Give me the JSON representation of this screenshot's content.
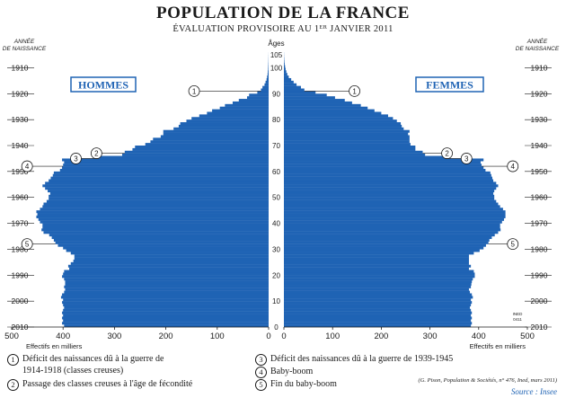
{
  "title": "POPULATION DE LA FRANCE",
  "subtitle": "ÉVALUATION PROVISOIRE AU 1ᴱᴿ JANVIER 2011",
  "colors": {
    "bar": "#1f63b4",
    "label_box": "#1f63b4",
    "text": "#1a1a1a",
    "source": "#1f63b4"
  },
  "legend": [
    {
      "n": "1",
      "text": "Déficit des naissances dû à la guerre de"
    },
    {
      "n": "",
      "text": "1914-1918 (classes creuses)"
    },
    {
      "n": "2",
      "text": "Passage des classes creuses à l'âge de fécondité"
    },
    {
      "n": "3",
      "text": "Déficit des naissances dû à la guerre de 1939-1945"
    },
    {
      "n": "4",
      "text": "Baby-boom"
    },
    {
      "n": "5",
      "text": "Fin du baby-boom"
    }
  ],
  "credit": "(G. Pison, Population & Sociétés, n° 476, Ined, mars 2011)",
  "source": "Source : Insee",
  "chart_data": {
    "type": "population_pyramid",
    "title": "POPULATION DE LA FRANCE",
    "subtitle": "ÉVALUATION PROVISOIRE AU 1ᴱᴿ JANVIER 2011",
    "xlabel": "Effectifs en milliers",
    "ylabel_left": "ANNÉE DE NAISSANCE",
    "ylabel_right": "ANNÉE DE NAISSANCE",
    "center_label": "Âges",
    "left_label": "HOMMES",
    "right_label": "FEMMES",
    "corner_note": "INED 0411",
    "xlim": [
      0,
      500
    ],
    "x_ticks": [
      500,
      400,
      300,
      200,
      100,
      0
    ],
    "age_range": [
      0,
      105
    ],
    "age_ticks": [
      0,
      10,
      20,
      30,
      40,
      50,
      60,
      70,
      80,
      90,
      100,
      105
    ],
    "birth_year_ticks": [
      2010,
      2000,
      1990,
      1980,
      1970,
      1960,
      1950,
      1940,
      1930,
      1920,
      1910
    ],
    "men": [
      398,
      402,
      400,
      402,
      400,
      402,
      400,
      398,
      400,
      402,
      400,
      404,
      402,
      398,
      396,
      398,
      396,
      396,
      398,
      402,
      400,
      398,
      388,
      390,
      385,
      380,
      378,
      378,
      385,
      394,
      400,
      410,
      415,
      418,
      422,
      427,
      438,
      442,
      440,
      440,
      445,
      448,
      452,
      450,
      452,
      445,
      440,
      438,
      432,
      428,
      428,
      425,
      430,
      435,
      440,
      435,
      428,
      424,
      420,
      418,
      406,
      402,
      400,
      398,
      402,
      330,
      285,
      280,
      265,
      260,
      240,
      230,
      225,
      210,
      205,
      205,
      185,
      175,
      172,
      160,
      150,
      135,
      120,
      110,
      95,
      85,
      70,
      58,
      42,
      38,
      22,
      15,
      12,
      8,
      6,
      4,
      3,
      2,
      1.5,
      1,
      0.8,
      0.6,
      0.4,
      0.3,
      0.2,
      0.1
    ],
    "women": [
      384,
      386,
      384,
      386,
      384,
      386,
      384,
      382,
      384,
      386,
      384,
      388,
      386,
      382,
      380,
      384,
      385,
      386,
      388,
      392,
      392,
      390,
      380,
      384,
      380,
      380,
      380,
      380,
      390,
      402,
      410,
      415,
      420,
      422,
      427,
      433,
      440,
      445,
      444,
      444,
      448,
      452,
      455,
      455,
      455,
      450,
      444,
      440,
      436,
      432,
      432,
      430,
      432,
      436,
      440,
      436,
      430,
      428,
      426,
      424,
      414,
      410,
      406,
      404,
      410,
      330,
      290,
      285,
      270,
      270,
      260,
      258,
      258,
      258,
      255,
      258,
      246,
      242,
      240,
      232,
      224,
      214,
      200,
      186,
      172,
      158,
      140,
      125,
      105,
      88,
      65,
      42,
      35,
      26,
      20,
      15,
      10,
      7,
      5,
      3.5,
      2.5,
      1.5,
      1,
      0.6,
      0.3,
      0.2
    ],
    "annotations": [
      {
        "n": "1",
        "side": "men",
        "age": 91,
        "value": 145
      },
      {
        "n": "1",
        "side": "women",
        "age": 91,
        "value": 145
      },
      {
        "n": "2",
        "side": "men",
        "age": 67,
        "value": 335
      },
      {
        "n": "2",
        "side": "women",
        "age": 67,
        "value": 335
      },
      {
        "n": "3",
        "side": "men",
        "age": 65,
        "value": 375
      },
      {
        "n": "3",
        "side": "women",
        "age": 65,
        "value": 375
      },
      {
        "n": "4",
        "side": "men",
        "age": 62,
        "value": 470
      },
      {
        "n": "4",
        "side": "women",
        "age": 62,
        "value": 470
      },
      {
        "n": "5",
        "side": "men",
        "age": 32,
        "value": 470
      },
      {
        "n": "5",
        "side": "women",
        "age": 32,
        "value": 470
      }
    ]
  }
}
